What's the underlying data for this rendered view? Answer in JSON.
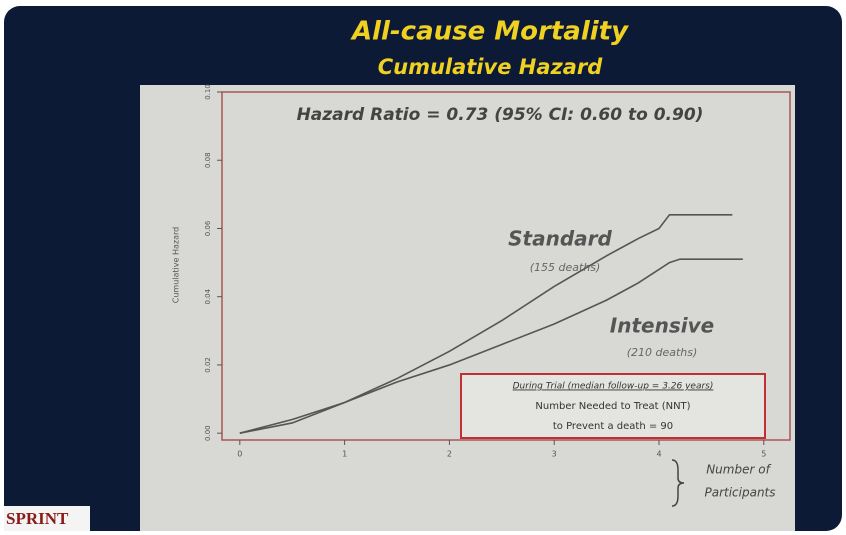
{
  "chart_data": {
    "type": "line",
    "title": "All-cause Mortality",
    "subtitle": "Cumulative Hazard",
    "ylabel": "Cumulative Hazard",
    "x": [
      0,
      0.5,
      1,
      1.5,
      2,
      2.5,
      3,
      3.5,
      3.8,
      4,
      4.1,
      4.2,
      4.7,
      4.8
    ],
    "series": [
      {
        "name": "Standard",
        "color": "#555555",
        "values": [
          0,
          0.003,
          0.009,
          0.016,
          0.024,
          0.033,
          0.043,
          0.052,
          0.057,
          0.06,
          0.064,
          0.064,
          0.064,
          null
        ]
      },
      {
        "name": "Intensive",
        "color": "#555555",
        "values": [
          0,
          0.004,
          0.009,
          0.015,
          0.02,
          0.026,
          0.032,
          0.039,
          0.044,
          0.048,
          0.05,
          0.051,
          0.051,
          0.051
        ]
      }
    ],
    "deaths": [
      "(155 deaths)",
      "(210 deaths)"
    ],
    "xlim": [
      -0.17,
      5.25
    ],
    "xticks": [
      0,
      1,
      2,
      3,
      4,
      5
    ],
    "ylim": [
      -0.002,
      0.1
    ],
    "yticks": [
      {
        "value": 0,
        "label": "0.00"
      },
      {
        "value": 0.02,
        "label": "0.02"
      },
      {
        "value": 0.04,
        "label": "0.04"
      },
      {
        "value": 0.06,
        "label": "0.06"
      },
      {
        "value": 0.08,
        "label": "0.08"
      },
      {
        "value": 0.1,
        "label": "0.10"
      }
    ],
    "hazard_ratio": "Hazard Ratio = 0.73 (95% CI: 0.60 to 0.90)",
    "box_lines": [
      "During Trial (median follow-up = 3.26 years)",
      "Number Needed to Treat (NNT)",
      "to Prevent a death = 90"
    ],
    "participants_label": [
      "Number of",
      "Participants"
    ]
  },
  "logo": "SPRINT"
}
